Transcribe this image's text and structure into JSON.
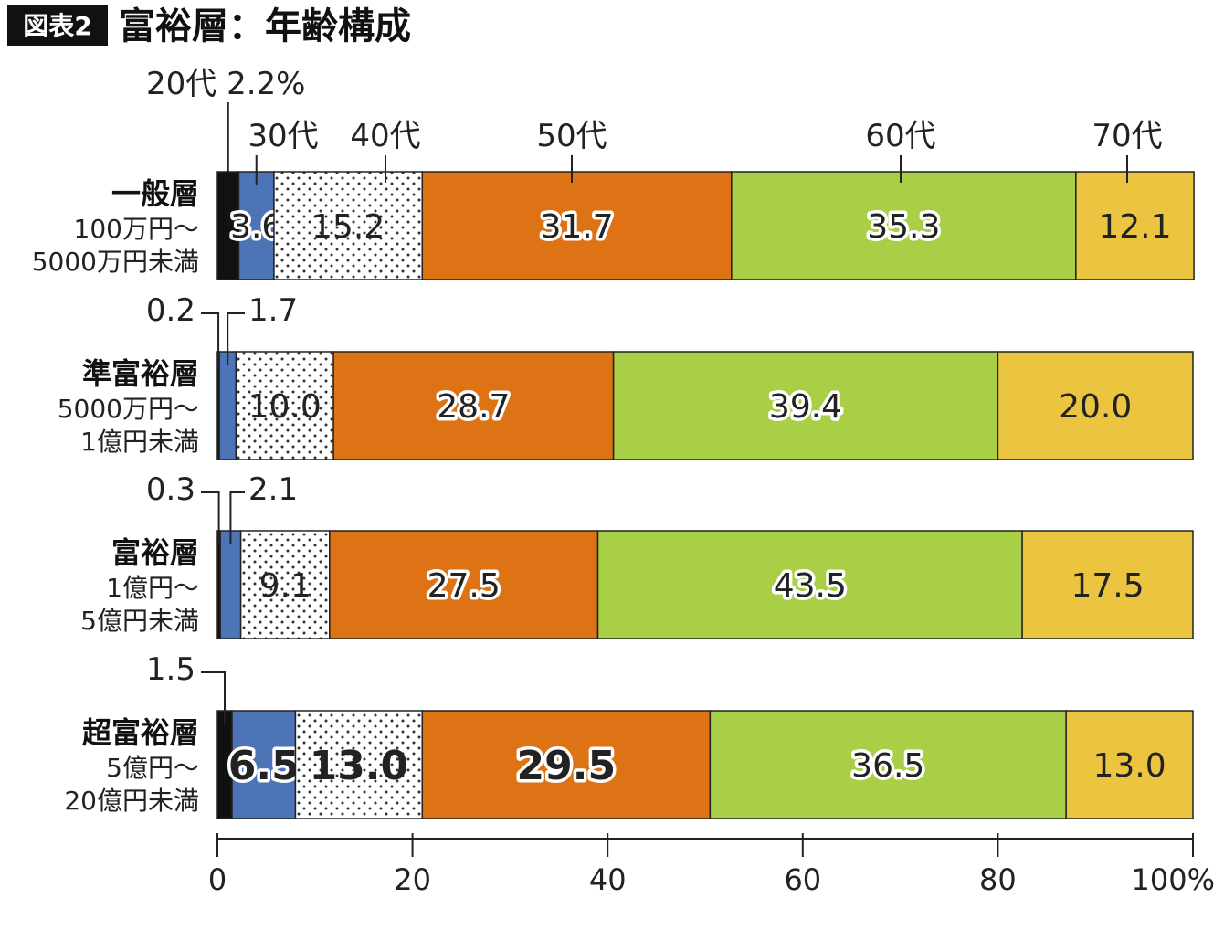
{
  "header": {
    "badge": "図表2",
    "title": "富裕層：年齢構成"
  },
  "chart_data": {
    "type": "bar",
    "orientation": "horizontal",
    "stacked": true,
    "xlim": [
      0,
      100
    ],
    "x_ticks": [
      "0",
      "20",
      "40",
      "60",
      "80",
      "100%"
    ],
    "categories": [
      {
        "name": "一般層",
        "range1": "100万円～",
        "range2": "5000万円未満"
      },
      {
        "name": "準富裕層",
        "range1": "5000万円～",
        "range2": "1億円未満"
      },
      {
        "name": "富裕層",
        "range1": "1億円～",
        "range2": "5億円未満"
      },
      {
        "name": "超富裕層",
        "range1": "5億円～",
        "range2": "20億円未満"
      }
    ],
    "series": [
      {
        "name": "20代",
        "color": "#111111",
        "pattern": "solid",
        "values": [
          2.2,
          0.2,
          0.3,
          1.5
        ]
      },
      {
        "name": "30代",
        "color": "#4e74b8",
        "pattern": "solid",
        "values": [
          3.6,
          1.7,
          2.1,
          6.5
        ]
      },
      {
        "name": "40代",
        "color": "#ffffff",
        "pattern": "dots",
        "values": [
          15.2,
          10.0,
          9.1,
          13.0
        ]
      },
      {
        "name": "50代",
        "color": "#de7315",
        "pattern": "solid",
        "values": [
          31.7,
          28.7,
          27.5,
          29.5
        ]
      },
      {
        "name": "60代",
        "color": "#a8cf45",
        "pattern": "solid",
        "values": [
          35.3,
          39.4,
          43.5,
          36.5
        ]
      },
      {
        "name": "70代",
        "color": "#ebc440",
        "pattern": "solid",
        "values": [
          12.1,
          20.0,
          17.5,
          13.0
        ]
      }
    ],
    "data_labels": [
      [
        "",
        "3.6",
        "15.2",
        "31.7",
        "35.3",
        "12.1"
      ],
      [
        "",
        "",
        "10.0",
        "28.7",
        "39.4",
        "20.0"
      ],
      [
        "",
        "",
        "9.1",
        "27.5",
        "43.5",
        "17.5"
      ],
      [
        "",
        "6.5",
        "13.0",
        "29.5",
        "36.5",
        "13.0"
      ]
    ],
    "callouts": {
      "top_20": "20代 2.2%",
      "small": [
        [
          "0.2",
          "1.7"
        ],
        [
          "0.3",
          "2.1"
        ],
        [
          "1.5",
          ""
        ]
      ]
    }
  }
}
